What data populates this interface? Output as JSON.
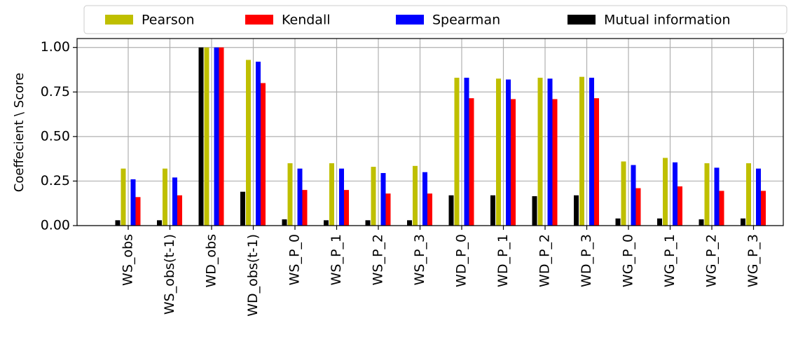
{
  "chart_data": {
    "type": "bar",
    "ylabel": "Coeffecient \\ Score",
    "categories": [
      "WS_obs",
      "WS_obs(t-1)",
      "WD_obs",
      "WD_obs(t-1)",
      "WS_P_0",
      "WS_P_1",
      "WS_P_2",
      "WS_P_3",
      "WD_P_0",
      "WD_P_1",
      "WD_P_2",
      "WD_P_3",
      "WG_P_0",
      "WG_P_1",
      "WG_P_2",
      "WG_P_3"
    ],
    "series": [
      {
        "name": "Pearson",
        "color": "#bfbf00",
        "values": [
          0.32,
          0.32,
          1.0,
          0.93,
          0.35,
          0.35,
          0.33,
          0.335,
          0.83,
          0.825,
          0.83,
          0.835,
          0.36,
          0.38,
          0.35,
          0.35
        ]
      },
      {
        "name": "Kendall",
        "color": "#ff0000",
        "values": [
          0.16,
          0.17,
          1.0,
          0.8,
          0.2,
          0.2,
          0.18,
          0.18,
          0.715,
          0.71,
          0.71,
          0.715,
          0.21,
          0.22,
          0.195,
          0.195
        ]
      },
      {
        "name": "Spearman",
        "color": "#0000ff",
        "values": [
          0.26,
          0.27,
          1.0,
          0.92,
          0.32,
          0.32,
          0.295,
          0.3,
          0.83,
          0.82,
          0.825,
          0.83,
          0.34,
          0.355,
          0.325,
          0.32
        ]
      },
      {
        "name": "Mutual information",
        "color": "#000000",
        "values": [
          0.03,
          0.03,
          1.0,
          0.19,
          0.035,
          0.03,
          0.03,
          0.03,
          0.17,
          0.17,
          0.165,
          0.17,
          0.04,
          0.04,
          0.035,
          0.04
        ]
      }
    ],
    "ylim": [
      0,
      1.05
    ],
    "yticks": [
      {
        "value": 0,
        "label": "0.00"
      },
      {
        "value": 0.25,
        "label": "0.25"
      },
      {
        "value": 0.5,
        "label": "0.50"
      },
      {
        "value": 0.75,
        "label": "0.75"
      },
      {
        "value": 1,
        "label": "1.00"
      }
    ],
    "grid": true,
    "legend": "top"
  }
}
